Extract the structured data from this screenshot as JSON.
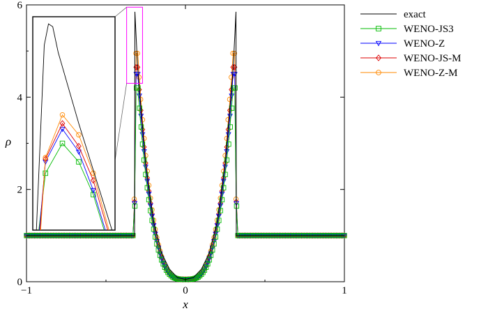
{
  "chart_data": {
    "type": "line",
    "xlabel": "x",
    "ylabel": "ρ",
    "xlim": [
      -1,
      1
    ],
    "ylim": [
      0,
      6
    ],
    "x_ticks": [
      "−1",
      "0",
      "1"
    ],
    "y_ticks": [
      "0",
      "2",
      "4",
      "6"
    ],
    "legend_position": "right, outside plot",
    "series": [
      {
        "name": "exact",
        "color": "#000000",
        "marker": "none"
      },
      {
        "name": "WENO-JS3",
        "color": "#00bb00",
        "marker": "square"
      },
      {
        "name": "WENO-Z",
        "color": "#0000ff",
        "marker": "triangle-down"
      },
      {
        "name": "WENO-JS-M",
        "color": "#dd0000",
        "marker": "diamond"
      },
      {
        "name": "WENO-Z-M",
        "color": "#ff8800",
        "marker": "circle"
      }
    ],
    "profile": {
      "exact": {
        "x": [
          -1.0,
          -0.32,
          -0.318,
          -0.3,
          -0.25,
          -0.2,
          -0.15,
          -0.1,
          -0.05,
          0.0,
          0.05,
          0.1,
          0.15,
          0.2,
          0.25,
          0.3,
          0.318,
          0.32,
          1.0
        ],
        "y": [
          1.0,
          1.0,
          5.85,
          4.6,
          2.55,
          1.3,
          0.62,
          0.27,
          0.09,
          0.05,
          0.09,
          0.27,
          0.62,
          1.3,
          2.55,
          4.6,
          5.85,
          1.0,
          1.0
        ]
      },
      "numerical_peak": {
        "WENO-JS3": 4.2,
        "WENO-Z": 4.5,
        "WENO-JS-M": 4.65,
        "WENO-Z-M": 4.95
      },
      "peak_x": 0.3
    },
    "inset": {
      "zoom_x": [
        -0.37,
        -0.27
      ],
      "zoom_y": [
        4.3,
        5.95
      ],
      "values": {
        "exact": [
          [
            -0.335,
            4.45
          ],
          [
            -0.325,
            5.9
          ],
          [
            -0.317,
            5.7
          ],
          [
            -0.2725,
            4.45
          ]
        ],
        "WENO-JS3": [
          [
            -0.333,
            4.45
          ],
          [
            -0.3275,
            4.85
          ],
          [
            -0.3135,
            5.06
          ],
          [
            -0.3,
            4.93
          ],
          [
            -0.288,
            4.7
          ],
          [
            -0.279,
            4.45
          ]
        ],
        "WENO-Z": [
          [
            -0.3325,
            4.45
          ],
          [
            -0.3275,
            4.93
          ],
          [
            -0.3135,
            5.16
          ],
          [
            -0.3,
            5.0
          ],
          [
            -0.288,
            4.73
          ],
          [
            -0.278,
            4.45
          ]
        ],
        "WENO-JS-M": [
          [
            -0.332,
            4.45
          ],
          [
            -0.3275,
            4.95
          ],
          [
            -0.3135,
            5.2
          ],
          [
            -0.3,
            5.04
          ],
          [
            -0.288,
            4.8
          ],
          [
            -0.276,
            4.45
          ]
        ],
        "WENO-Z-M": [
          [
            -0.3315,
            4.45
          ],
          [
            -0.3275,
            4.96
          ],
          [
            -0.3135,
            5.26
          ],
          [
            -0.3,
            5.12
          ],
          [
            -0.288,
            4.85
          ],
          [
            -0.275,
            4.45
          ]
        ]
      }
    }
  }
}
